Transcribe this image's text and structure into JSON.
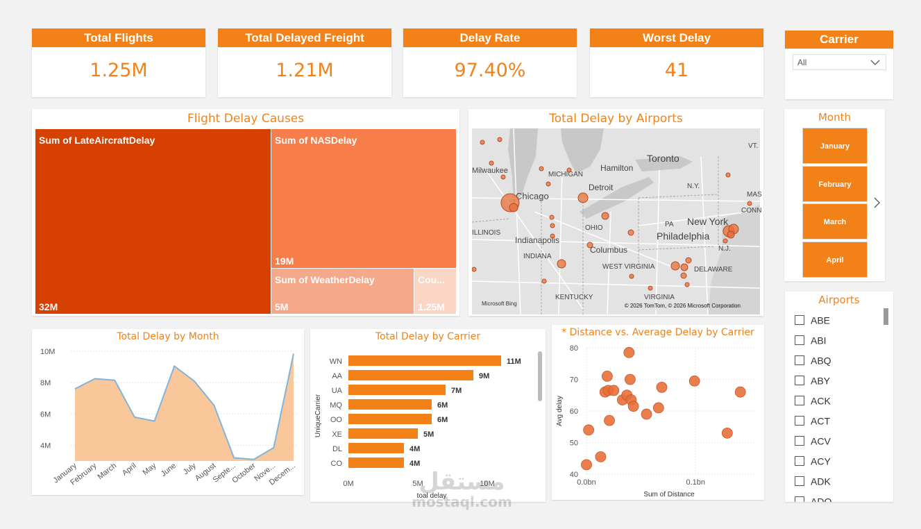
{
  "kpis": [
    {
      "title": "Total Flights",
      "value": "1.25M"
    },
    {
      "title": "Total Delayed Freight",
      "value": "1.21M"
    },
    {
      "title": "Delay Rate",
      "value": "97.40%"
    },
    {
      "title": "Worst Delay",
      "value": "41"
    }
  ],
  "carrier_filter": {
    "title": "Carrier",
    "selected": "All"
  },
  "causes": {
    "title": "Flight Delay Causes",
    "tiles": [
      {
        "label": "Sum of LateAircraftDelay",
        "value": "32M"
      },
      {
        "label": "Sum of NASDelay",
        "value": "19M"
      },
      {
        "label": "Sum of WeatherDelay",
        "value": "5M"
      },
      {
        "label": "Cou...",
        "value": "1.25M"
      }
    ]
  },
  "map": {
    "title": "Total Delay by Airports",
    "places": [
      "Milwaukee",
      "MICHIGAN",
      "Hamilton",
      "Toronto",
      "VT.",
      "Chicago",
      "Detroit",
      "N.Y.",
      "MAS",
      "CONN",
      "ILLINOIS",
      "OHIO",
      "PA",
      "New York",
      "Indianapolis",
      "Philadelphia",
      "INDIANA",
      "Columbus",
      "N.J.",
      "WEST VIRGINIA",
      "DELAWARE",
      "KENTUCKY",
      "VIRGINIA"
    ],
    "attribution": "© 2026 TomTom, © 2026 Microsoft Corporation",
    "logo": "Microsoft Bing"
  },
  "month_slicer": {
    "title": "Month",
    "items": [
      "January",
      "February",
      "March",
      "April"
    ]
  },
  "airports": {
    "title": "Airports",
    "items": [
      "ABE",
      "ABI",
      "ABQ",
      "ABY",
      "ACK",
      "ACT",
      "ACV",
      "ACY",
      "ADK",
      "ADQ"
    ]
  },
  "charts": {
    "month": {
      "type": "area",
      "title": "Total Delay by Month",
      "categories": [
        "January",
        "February",
        "March",
        "April",
        "May",
        "June",
        "July",
        "August",
        "Septe...",
        "October",
        "Nove...",
        "Decem..."
      ],
      "values": [
        7.6,
        8.25,
        8.15,
        5.8,
        5.55,
        9.05,
        8.1,
        6.55,
        3.2,
        3.1,
        3.85,
        9.85
      ],
      "ylim": [
        3,
        10
      ],
      "yticks": [
        "10M",
        "8M",
        "6M",
        "4M"
      ],
      "color": "#f9c79a",
      "line_color": "#7fb4dc"
    },
    "carrier": {
      "type": "bar",
      "title": "Total Delay by Carrier",
      "xlabel": "toal delay",
      "ylabel": "UniqueCarrier",
      "categories": [
        "WN",
        "AA",
        "UA",
        "MQ",
        "OO",
        "XE",
        "DL",
        "CO"
      ],
      "values": [
        11,
        9,
        7,
        6,
        6,
        5,
        4,
        4
      ],
      "value_labels": [
        "11M",
        "9M",
        "7M",
        "6M",
        "6M",
        "5M",
        "4M",
        "4M"
      ],
      "xlim": [
        0,
        12
      ],
      "xticks": [
        "0M",
        "5M",
        "10M"
      ],
      "color": "#f28218"
    },
    "scatter": {
      "type": "scatter",
      "title": "* Distance vs. Average Delay by Carrier",
      "xlabel": "Sum of Distance",
      "ylabel": "Avg delay",
      "xticks": [
        "0.0bn",
        "0.1bn"
      ],
      "yticks": [
        "80",
        "70",
        "60",
        "50",
        "40"
      ],
      "xlim": [
        0,
        0.145
      ],
      "ylim": [
        40,
        80
      ],
      "points": [
        [
          0.0,
          43
        ],
        [
          0.002,
          54
        ],
        [
          0.013,
          45.5
        ],
        [
          0.017,
          66
        ],
        [
          0.019,
          71
        ],
        [
          0.02,
          66.5
        ],
        [
          0.021,
          57
        ],
        [
          0.025,
          66.5
        ],
        [
          0.033,
          63.5
        ],
        [
          0.037,
          65
        ],
        [
          0.039,
          78.5
        ],
        [
          0.041,
          63.5
        ],
        [
          0.04,
          70
        ],
        [
          0.043,
          61.5
        ],
        [
          0.055,
          59
        ],
        [
          0.066,
          61
        ],
        [
          0.069,
          67.5
        ],
        [
          0.099,
          69.5
        ],
        [
          0.129,
          53
        ],
        [
          0.141,
          66
        ]
      ],
      "color": "#e8703a"
    }
  },
  "watermark": {
    "text": "مستقل",
    "sub": "mostaql.com"
  }
}
